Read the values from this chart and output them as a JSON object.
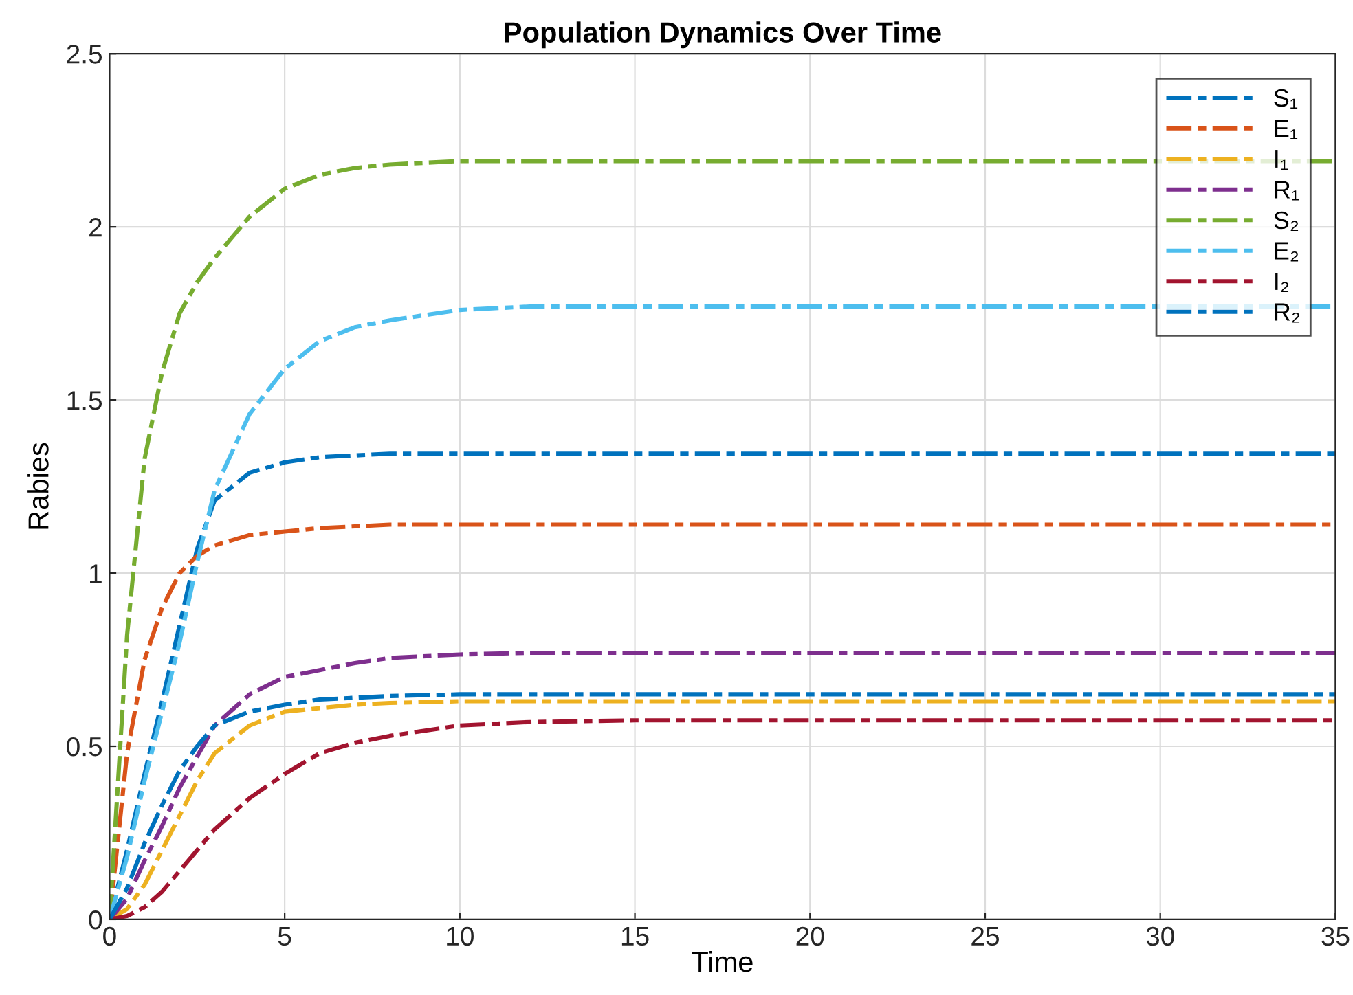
{
  "chart_data": {
    "type": "line",
    "title": "Population Dynamics Over Time",
    "xlabel": "Time",
    "ylabel": "Rabies",
    "x": [
      0,
      0.5,
      1,
      1.5,
      2,
      2.5,
      3,
      4,
      5,
      6,
      7,
      8,
      10,
      12,
      15,
      20,
      35
    ],
    "series": [
      {
        "name": "S₁",
        "color": "#0072bd",
        "values": [
          0,
          0.2,
          0.42,
          0.63,
          0.85,
          1.07,
          1.21,
          1.29,
          1.32,
          1.335,
          1.34,
          1.345,
          1.345,
          1.345,
          1.345,
          1.345,
          1.345
        ]
      },
      {
        "name": "E₁",
        "color": "#d95319",
        "values": [
          0,
          0.48,
          0.75,
          0.9,
          1.0,
          1.05,
          1.08,
          1.11,
          1.12,
          1.13,
          1.135,
          1.14,
          1.14,
          1.14,
          1.14,
          1.14,
          1.14
        ]
      },
      {
        "name": "I₁",
        "color": "#edb120",
        "values": [
          0,
          0.03,
          0.1,
          0.2,
          0.3,
          0.4,
          0.48,
          0.56,
          0.6,
          0.61,
          0.62,
          0.625,
          0.63,
          0.63,
          0.63,
          0.63,
          0.63
        ]
      },
      {
        "name": "R₁",
        "color": "#7e2f8e",
        "values": [
          0,
          0.06,
          0.17,
          0.27,
          0.38,
          0.47,
          0.56,
          0.65,
          0.7,
          0.72,
          0.74,
          0.755,
          0.765,
          0.77,
          0.77,
          0.77,
          0.77
        ]
      },
      {
        "name": "S₂",
        "color": "#77ac30",
        "values": [
          0,
          0.82,
          1.33,
          1.58,
          1.75,
          1.84,
          1.91,
          2.03,
          2.11,
          2.15,
          2.17,
          2.18,
          2.19,
          2.19,
          2.19,
          2.19,
          2.19
        ]
      },
      {
        "name": "E₂",
        "color": "#4dbeee",
        "values": [
          0,
          0.18,
          0.4,
          0.6,
          0.8,
          1.03,
          1.24,
          1.46,
          1.59,
          1.67,
          1.71,
          1.73,
          1.76,
          1.77,
          1.77,
          1.77,
          1.77
        ]
      },
      {
        "name": "I₂",
        "color": "#a2142f",
        "values": [
          0,
          0.01,
          0.035,
          0.08,
          0.14,
          0.2,
          0.26,
          0.35,
          0.42,
          0.48,
          0.51,
          0.53,
          0.56,
          0.57,
          0.575,
          0.575,
          0.575
        ]
      },
      {
        "name": "R₂",
        "color": "#0072bd",
        "values": [
          0,
          0.09,
          0.22,
          0.33,
          0.43,
          0.5,
          0.56,
          0.6,
          0.62,
          0.635,
          0.64,
          0.645,
          0.65,
          0.65,
          0.65,
          0.65,
          0.65
        ]
      }
    ],
    "xlim": [
      0,
      35
    ],
    "xticks": [
      0,
      5,
      10,
      15,
      20,
      25,
      30,
      35
    ],
    "ylim": [
      0,
      2.5
    ],
    "yticks": [
      0,
      0.5,
      1,
      1.5,
      2,
      2.5
    ],
    "grid": true,
    "legend": "top right",
    "line_style": "dashed"
  }
}
